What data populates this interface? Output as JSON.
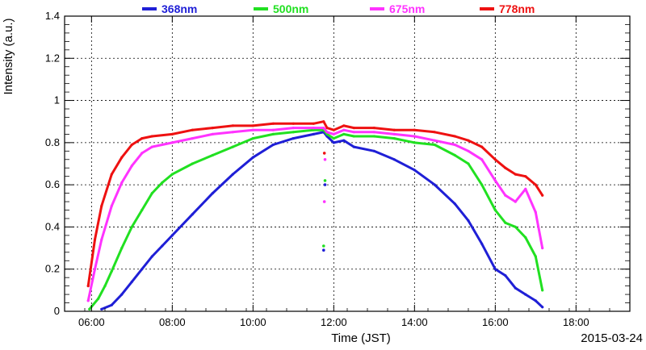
{
  "chart_data": {
    "type": "line",
    "title": "",
    "xlabel": "Time (JST)",
    "ylabel": "Intensity (a.u.)",
    "date_label": "2015-03-24",
    "xlim": [
      "05:20",
      "19:20"
    ],
    "ylim": [
      0,
      1.4
    ],
    "x_ticks": [
      "06:00",
      "08:00",
      "10:00",
      "12:00",
      "14:00",
      "16:00",
      "18:00"
    ],
    "y_ticks": [
      "0",
      "0.2",
      "0.4",
      "0.6",
      "0.8",
      "1",
      "1.2",
      "1.4"
    ],
    "grid": true,
    "legend_position": "top",
    "colors": {
      "368nm": "#1f1fd6",
      "500nm": "#21e021",
      "675nm": "#ff33ff",
      "778nm": "#ee1111"
    },
    "series": [
      {
        "name": "368nm",
        "color": "#1f1fd6",
        "points": [
          [
            "06:15",
            0.01
          ],
          [
            "06:30",
            0.03
          ],
          [
            "06:45",
            0.08
          ],
          [
            "07:00",
            0.14
          ],
          [
            "07:15",
            0.2
          ],
          [
            "07:30",
            0.26
          ],
          [
            "07:45",
            0.31
          ],
          [
            "08:00",
            0.36
          ],
          [
            "08:30",
            0.46
          ],
          [
            "09:00",
            0.56
          ],
          [
            "09:30",
            0.65
          ],
          [
            "10:00",
            0.73
          ],
          [
            "10:30",
            0.79
          ],
          [
            "11:00",
            0.82
          ],
          [
            "11:30",
            0.84
          ],
          [
            "11:45",
            0.85
          ],
          [
            "11:50",
            0.83
          ],
          [
            "12:00",
            0.8
          ],
          [
            "12:15",
            0.81
          ],
          [
            "12:30",
            0.78
          ],
          [
            "13:00",
            0.76
          ],
          [
            "13:30",
            0.72
          ],
          [
            "14:00",
            0.67
          ],
          [
            "14:30",
            0.6
          ],
          [
            "15:00",
            0.51
          ],
          [
            "15:20",
            0.43
          ],
          [
            "15:40",
            0.32
          ],
          [
            "16:00",
            0.2
          ],
          [
            "16:15",
            0.17
          ],
          [
            "16:30",
            0.11
          ],
          [
            "16:45",
            0.08
          ],
          [
            "17:00",
            0.05
          ],
          [
            "17:10",
            0.02
          ]
        ]
      },
      {
        "name": "500nm",
        "color": "#21e021",
        "points": [
          [
            "05:57",
            0.01
          ],
          [
            "06:10",
            0.06
          ],
          [
            "06:20",
            0.12
          ],
          [
            "06:30",
            0.19
          ],
          [
            "06:45",
            0.3
          ],
          [
            "07:00",
            0.4
          ],
          [
            "07:15",
            0.48
          ],
          [
            "07:30",
            0.56
          ],
          [
            "07:45",
            0.61
          ],
          [
            "08:00",
            0.65
          ],
          [
            "08:30",
            0.7
          ],
          [
            "09:00",
            0.74
          ],
          [
            "09:30",
            0.78
          ],
          [
            "10:00",
            0.82
          ],
          [
            "10:30",
            0.84
          ],
          [
            "11:00",
            0.85
          ],
          [
            "11:30",
            0.86
          ],
          [
            "11:45",
            0.86
          ],
          [
            "11:50",
            0.84
          ],
          [
            "12:00",
            0.82
          ],
          [
            "12:15",
            0.84
          ],
          [
            "12:30",
            0.83
          ],
          [
            "13:00",
            0.83
          ],
          [
            "13:30",
            0.82
          ],
          [
            "14:00",
            0.8
          ],
          [
            "14:30",
            0.79
          ],
          [
            "15:00",
            0.74
          ],
          [
            "15:20",
            0.7
          ],
          [
            "15:40",
            0.6
          ],
          [
            "16:00",
            0.48
          ],
          [
            "16:15",
            0.42
          ],
          [
            "16:30",
            0.4
          ],
          [
            "16:45",
            0.35
          ],
          [
            "17:00",
            0.26
          ],
          [
            "17:10",
            0.1
          ]
        ]
      },
      {
        "name": "675nm",
        "color": "#ff33ff",
        "points": [
          [
            "05:55",
            0.05
          ],
          [
            "06:05",
            0.2
          ],
          [
            "06:15",
            0.34
          ],
          [
            "06:30",
            0.5
          ],
          [
            "06:45",
            0.61
          ],
          [
            "07:00",
            0.69
          ],
          [
            "07:15",
            0.75
          ],
          [
            "07:30",
            0.78
          ],
          [
            "08:00",
            0.8
          ],
          [
            "08:30",
            0.82
          ],
          [
            "09:00",
            0.84
          ],
          [
            "09:30",
            0.85
          ],
          [
            "10:00",
            0.86
          ],
          [
            "10:30",
            0.86
          ],
          [
            "11:00",
            0.87
          ],
          [
            "11:30",
            0.87
          ],
          [
            "11:45",
            0.87
          ],
          [
            "11:50",
            0.85
          ],
          [
            "12:00",
            0.84
          ],
          [
            "12:15",
            0.86
          ],
          [
            "12:30",
            0.85
          ],
          [
            "13:00",
            0.85
          ],
          [
            "13:30",
            0.84
          ],
          [
            "14:00",
            0.83
          ],
          [
            "14:30",
            0.81
          ],
          [
            "15:00",
            0.79
          ],
          [
            "15:20",
            0.76
          ],
          [
            "15:40",
            0.72
          ],
          [
            "16:00",
            0.62
          ],
          [
            "16:15",
            0.55
          ],
          [
            "16:30",
            0.52
          ],
          [
            "16:45",
            0.58
          ],
          [
            "17:00",
            0.47
          ],
          [
            "17:10",
            0.3
          ]
        ]
      },
      {
        "name": "778nm",
        "color": "#ee1111",
        "points": [
          [
            "05:55",
            0.12
          ],
          [
            "06:05",
            0.34
          ],
          [
            "06:15",
            0.5
          ],
          [
            "06:30",
            0.65
          ],
          [
            "06:45",
            0.73
          ],
          [
            "07:00",
            0.79
          ],
          [
            "07:15",
            0.82
          ],
          [
            "07:30",
            0.83
          ],
          [
            "08:00",
            0.84
          ],
          [
            "08:30",
            0.86
          ],
          [
            "09:00",
            0.87
          ],
          [
            "09:30",
            0.88
          ],
          [
            "10:00",
            0.88
          ],
          [
            "10:30",
            0.89
          ],
          [
            "11:00",
            0.89
          ],
          [
            "11:30",
            0.89
          ],
          [
            "11:45",
            0.9
          ],
          [
            "11:50",
            0.87
          ],
          [
            "12:00",
            0.86
          ],
          [
            "12:15",
            0.88
          ],
          [
            "12:30",
            0.87
          ],
          [
            "13:00",
            0.87
          ],
          [
            "13:30",
            0.86
          ],
          [
            "14:00",
            0.86
          ],
          [
            "14:30",
            0.85
          ],
          [
            "15:00",
            0.83
          ],
          [
            "15:20",
            0.81
          ],
          [
            "15:40",
            0.78
          ],
          [
            "16:00",
            0.72
          ],
          [
            "16:15",
            0.68
          ],
          [
            "16:30",
            0.65
          ],
          [
            "16:45",
            0.64
          ],
          [
            "17:00",
            0.6
          ],
          [
            "17:10",
            0.55
          ]
        ]
      }
    ],
    "outliers": [
      {
        "series": "368nm",
        "x": "11:45",
        "y": 0.29
      },
      {
        "series": "368nm",
        "x": "11:47",
        "y": 0.6
      },
      {
        "series": "500nm",
        "x": "11:45",
        "y": 0.31
      },
      {
        "series": "500nm",
        "x": "11:47",
        "y": 0.62
      },
      {
        "series": "675nm",
        "x": "11:46",
        "y": 0.52
      },
      {
        "series": "675nm",
        "x": "11:47",
        "y": 0.72
      },
      {
        "series": "778nm",
        "x": "11:46",
        "y": 0.75
      }
    ]
  }
}
